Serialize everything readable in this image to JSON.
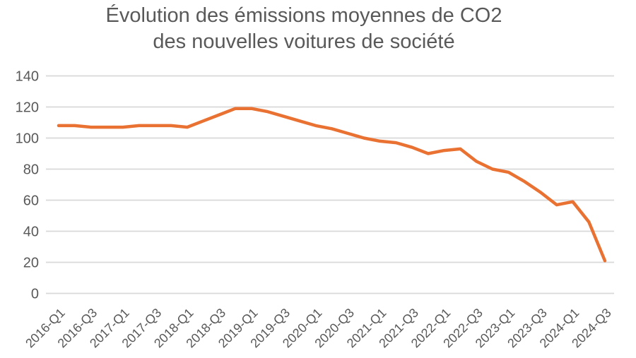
{
  "chart": {
    "title_line1": "Évolution des émissions moyennes de CO2",
    "title_line2": "des nouvelles voitures de société"
  },
  "chart_data": {
    "type": "line",
    "title": "Évolution des émissions moyennes de CO2 des nouvelles voitures de société",
    "xlabel": "",
    "ylabel": "",
    "legend": "none",
    "grid": "horizontal",
    "ylim": [
      0,
      140
    ],
    "y_ticks": [
      0,
      20,
      40,
      60,
      80,
      100,
      120,
      140
    ],
    "categories": [
      "2016-Q1",
      "2016-Q2",
      "2016-Q3",
      "2016-Q4",
      "2017-Q1",
      "2017-Q2",
      "2017-Q3",
      "2017-Q4",
      "2018-Q1",
      "2018-Q2",
      "2018-Q3",
      "2018-Q4",
      "2019-Q1",
      "2019-Q2",
      "2019-Q3",
      "2019-Q4",
      "2020-Q1",
      "2020-Q2",
      "2020-Q3",
      "2020-Q4",
      "2021-Q1",
      "2021-Q2",
      "2021-Q3",
      "2021-Q4",
      "2022-Q1",
      "2022-Q2",
      "2022-Q3",
      "2022-Q4",
      "2023-Q1",
      "2023-Q2",
      "2023-Q3",
      "2023-Q4",
      "2024-Q1",
      "2024-Q2",
      "2024-Q3"
    ],
    "values": [
      108,
      108,
      107,
      107,
      107,
      108,
      108,
      108,
      107,
      111,
      115,
      119,
      119,
      117,
      114,
      111,
      108,
      106,
      103,
      100,
      98,
      97,
      94,
      90,
      92,
      93,
      85,
      80,
      78,
      72,
      65,
      57,
      59,
      46,
      21
    ],
    "x_tick_labels": [
      "2016-Q1",
      "2016-Q3",
      "2017-Q1",
      "2017-Q3",
      "2018-Q1",
      "2018-Q3",
      "2019-Q1",
      "2019-Q3",
      "2020-Q1",
      "2020-Q3",
      "2021-Q1",
      "2021-Q3",
      "2022-Q1",
      "2022-Q3",
      "2023-Q1",
      "2023-Q3",
      "2024-Q1",
      "2024-Q3"
    ],
    "x_tick_every": 2,
    "series_color": "#E97132",
    "gridline_color": "#D9D9D9",
    "axis_label_color": "#595959",
    "title_color": "#595959"
  }
}
